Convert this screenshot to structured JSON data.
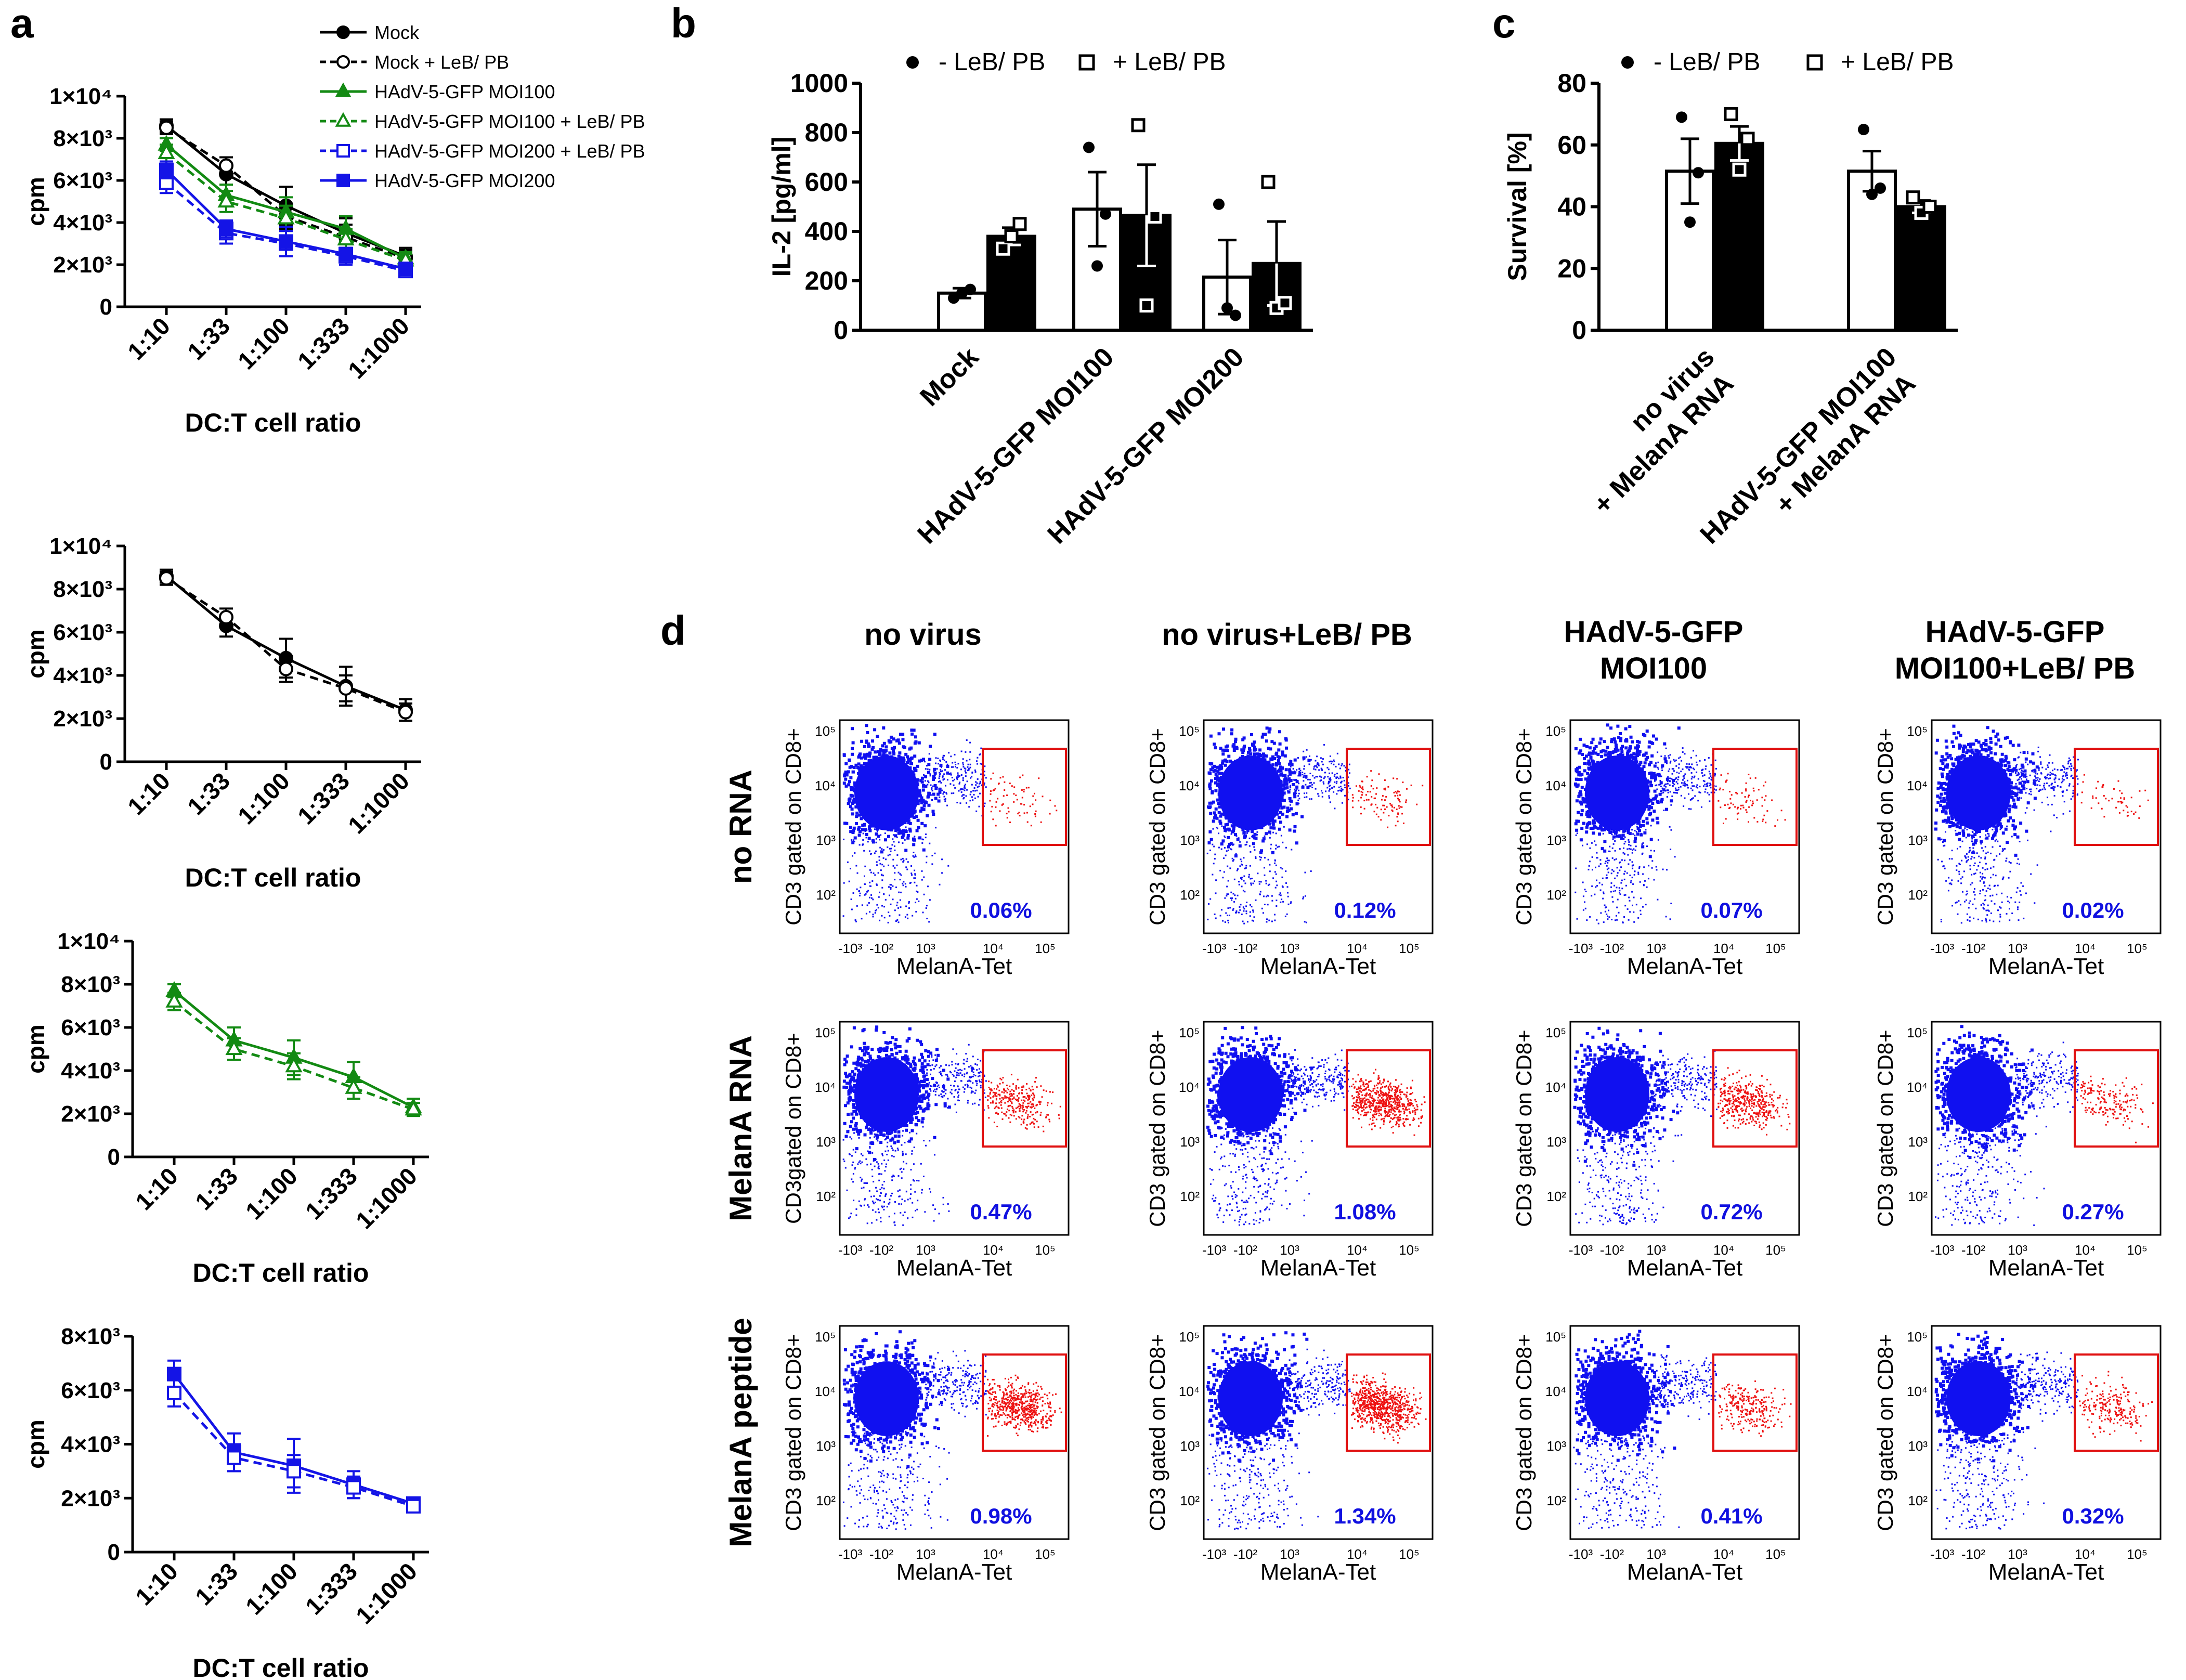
{
  "panel_labels": [
    "a",
    "b",
    "c",
    "d"
  ],
  "chart_data": [
    {
      "id": "a1",
      "type": "line",
      "xlabel": "DC:T cell ratio",
      "ylabel": "cpm",
      "categories": [
        "1:10",
        "1:33",
        "1:100",
        "1:333",
        "1:1000"
      ],
      "ylim": [
        0,
        10000
      ],
      "y_ticks": [
        {
          "v": 0,
          "l": "0"
        },
        {
          "v": 2000,
          "l": "2×10³"
        },
        {
          "v": 4000,
          "l": "4×10³"
        },
        {
          "v": 6000,
          "l": "6×10³"
        },
        {
          "v": 8000,
          "l": "8×10³"
        },
        {
          "v": 10000,
          "l": "1×10⁴"
        }
      ],
      "legend": [
        "Mock",
        "Mock + LeB/ PB",
        "HAdV-5-GFP MOI100",
        "HAdV-5-GFP MOI100 + LeB/ PB",
        "HAdV-5-GFP MOI200 + LeB/ PB",
        "HAdV-5-GFP MOI200"
      ],
      "series": [
        {
          "name": "Mock",
          "color": "#000000",
          "marker": "circle",
          "filled": true,
          "dashed": false,
          "values": [
            8600,
            6300,
            4800,
            3500,
            2400
          ],
          "errors": [
            300,
            500,
            900,
            700,
            400
          ]
        },
        {
          "name": "Mock + LeB/ PB",
          "color": "#000000",
          "marker": "circle",
          "filled": false,
          "dashed": true,
          "values": [
            8500,
            6700,
            4300,
            3300,
            2300
          ],
          "errors": [
            300,
            400,
            600,
            600,
            400
          ]
        },
        {
          "name": "HAdV-5-GFP MOI100",
          "color": "#138a13",
          "marker": "triangle",
          "filled": true,
          "dashed": false,
          "values": [
            7700,
            5300,
            4500,
            3700,
            2300
          ],
          "errors": [
            300,
            500,
            700,
            600,
            300
          ]
        },
        {
          "name": "HAdV-5-GFP MOI100 + LeB/ PB",
          "color": "#138a13",
          "marker": "triangle",
          "filled": false,
          "dashed": true,
          "values": [
            7300,
            5000,
            4200,
            3200,
            2200
          ],
          "errors": [
            400,
            500,
            600,
            500,
            300
          ]
        },
        {
          "name": "HAdV-5-GFP MOI200 + LeB/ PB",
          "color": "#1414e6",
          "marker": "square",
          "filled": false,
          "dashed": true,
          "values": [
            5900,
            3500,
            3000,
            2400,
            1700
          ],
          "errors": [
            500,
            500,
            600,
            400,
            200
          ]
        },
        {
          "name": "HAdV-5-GFP MOI200",
          "color": "#1414e6",
          "marker": "square",
          "filled": true,
          "dashed": false,
          "values": [
            6500,
            3700,
            3100,
            2500,
            1800
          ],
          "errors": [
            400,
            400,
            700,
            300,
            200
          ]
        }
      ]
    },
    {
      "id": "a2",
      "type": "line",
      "xlabel": "DC:T cell ratio",
      "ylabel": "cpm",
      "categories": [
        "1:10",
        "1:33",
        "1:100",
        "1:333",
        "1:1000"
      ],
      "ylim": [
        0,
        10000
      ],
      "y_ticks": [
        {
          "v": 0,
          "l": "0"
        },
        {
          "v": 2000,
          "l": "2×10³"
        },
        {
          "v": 4000,
          "l": "4×10³"
        },
        {
          "v": 6000,
          "l": "6×10³"
        },
        {
          "v": 8000,
          "l": "8×10³"
        },
        {
          "v": 10000,
          "l": "1×10⁴"
        }
      ],
      "series": [
        {
          "name": "Mock",
          "color": "#000000",
          "marker": "circle",
          "filled": true,
          "dashed": false,
          "values": [
            8600,
            6300,
            4800,
            3500,
            2400
          ],
          "errors": [
            300,
            500,
            900,
            900,
            500
          ]
        },
        {
          "name": "Mock + LeB/ PB",
          "color": "#000000",
          "marker": "circle",
          "filled": false,
          "dashed": true,
          "values": [
            8500,
            6700,
            4300,
            3400,
            2300
          ],
          "errors": [
            300,
            400,
            600,
            600,
            400
          ]
        }
      ]
    },
    {
      "id": "a3",
      "type": "line",
      "xlabel": "DC:T cell ratio",
      "ylabel": "cpm",
      "categories": [
        "1:10",
        "1:33",
        "1:100",
        "1:333",
        "1:1000"
      ],
      "ylim": [
        0,
        10000
      ],
      "y_ticks": [
        {
          "v": 0,
          "l": "0"
        },
        {
          "v": 2000,
          "l": "2×10³"
        },
        {
          "v": 4000,
          "l": "4×10³"
        },
        {
          "v": 6000,
          "l": "6×10³"
        },
        {
          "v": 8000,
          "l": "8×10³"
        },
        {
          "v": 10000,
          "l": "1×10⁴"
        }
      ],
      "series": [
        {
          "name": "HAdV-5-GFP MOI100",
          "color": "#138a13",
          "marker": "triangle",
          "filled": true,
          "dashed": false,
          "values": [
            7700,
            5400,
            4600,
            3700,
            2300
          ],
          "errors": [
            300,
            600,
            800,
            700,
            400
          ]
        },
        {
          "name": "HAdV-5-GFP MOI100 + LeB/ PB",
          "color": "#138a13",
          "marker": "triangle",
          "filled": false,
          "dashed": true,
          "values": [
            7200,
            5000,
            4200,
            3200,
            2200
          ],
          "errors": [
            400,
            500,
            600,
            500,
            300
          ]
        }
      ]
    },
    {
      "id": "a4",
      "type": "line",
      "xlabel": "DC:T cell ratio",
      "ylabel": "cpm",
      "categories": [
        "1:10",
        "1:33",
        "1:100",
        "1:333",
        "1:1000"
      ],
      "ylim": [
        0,
        8000
      ],
      "y_ticks": [
        {
          "v": 0,
          "l": "0"
        },
        {
          "v": 2000,
          "l": "2×10³"
        },
        {
          "v": 4000,
          "l": "4×10³"
        },
        {
          "v": 6000,
          "l": "6×10³"
        },
        {
          "v": 8000,
          "l": "8×10³"
        }
      ],
      "series": [
        {
          "name": "HAdV-5-GFP MOI200",
          "color": "#1414e6",
          "marker": "square",
          "filled": true,
          "dashed": false,
          "values": [
            6600,
            3700,
            3200,
            2500,
            1800
          ],
          "errors": [
            500,
            700,
            1000,
            500,
            200
          ]
        },
        {
          "name": "HAdV-5-GFP MOI200 + LeB/ PB",
          "color": "#1414e6",
          "marker": "square",
          "filled": false,
          "dashed": true,
          "values": [
            5900,
            3500,
            3000,
            2400,
            1700
          ],
          "errors": [
            500,
            500,
            600,
            400,
            200
          ]
        }
      ]
    },
    {
      "id": "b",
      "type": "bar",
      "ylabel": "IL-2 [pg/ml]",
      "ylim": [
        0,
        1000
      ],
      "y_ticks": [
        0,
        200,
        400,
        600,
        800,
        1000
      ],
      "legend": [
        "- LeB/ PB",
        "+ LeB/ PB"
      ],
      "categories": [
        "Mock",
        "HAdV-5-GFP MOI100",
        "HAdV-5-GFP MOI200"
      ],
      "series": [
        {
          "name": "- LeB/ PB",
          "filled": false,
          "values": [
            150,
            490,
            215
          ],
          "errors": [
            20,
            150,
            150
          ],
          "points": [
            [
              130,
              150,
              165
            ],
            [
              740,
              260,
              470
            ],
            [
              510,
              90,
              60
            ]
          ]
        },
        {
          "name": "+ LeB/ PB",
          "filled": true,
          "values": [
            380,
            465,
            270
          ],
          "errors": [
            35,
            205,
            170
          ],
          "points": [
            [
              330,
              380,
              430
            ],
            [
              830,
              100,
              460
            ],
            [
              600,
              90,
              110
            ]
          ]
        }
      ]
    },
    {
      "id": "c",
      "type": "bar",
      "ylabel": "Survival [%]",
      "ylim": [
        0,
        80
      ],
      "y_ticks": [
        0,
        20,
        40,
        60,
        80
      ],
      "legend": [
        "- LeB/ PB",
        "+ LeB/ PB"
      ],
      "categories": [
        "no virus\n+ MelanA RNA",
        "HAdV-5-GFP MOI100\n+ MelanA RNA"
      ],
      "series": [
        {
          "name": "- LeB/ PB",
          "filled": false,
          "values": [
            51.5,
            51.5
          ],
          "errors": [
            10.5,
            6.5
          ],
          "points": [
            [
              69,
              35,
              51
            ],
            [
              65,
              44,
              46
            ]
          ]
        },
        {
          "name": "+ LeB/ PB",
          "filled": true,
          "values": [
            60.5,
            40
          ],
          "errors": [
            5.5,
            2
          ],
          "points": [
            [
              70,
              52,
              62
            ],
            [
              43,
              38,
              40
            ]
          ]
        }
      ]
    },
    {
      "id": "d",
      "type": "scatter",
      "columns": [
        "no virus",
        "no virus+LeB/ PB",
        "HAdV-5-GFP\nMOI100",
        "HAdV-5-GFP\nMOI100+LeB/ PB"
      ],
      "rows": [
        "no RNA",
        "MelanA RNA",
        "MelanA peptide"
      ],
      "xlabel": "MelanA-Tet",
      "ylabel": "CD3 gated on CD8+",
      "ylabel_variant": "CD3gated on CD8+",
      "x_ticks": [
        "-10³",
        "-10²",
        "10³",
        "10⁴",
        "10⁵"
      ],
      "y_ticks": [
        "10⁵",
        "10⁴",
        "10³",
        "10²"
      ],
      "percentages": [
        [
          "0.06%",
          "0.12%",
          "0.07%",
          "0.02%"
        ],
        [
          "0.47%",
          "1.08%",
          "0.72%",
          "0.27%"
        ],
        [
          "0.98%",
          "1.34%",
          "0.41%",
          "0.32%"
        ]
      ],
      "gate_density": [
        [
          0.06,
          0.12,
          0.07,
          0.02
        ],
        [
          0.47,
          1.08,
          0.72,
          0.27
        ],
        [
          0.98,
          1.34,
          0.41,
          0.32
        ]
      ]
    }
  ]
}
